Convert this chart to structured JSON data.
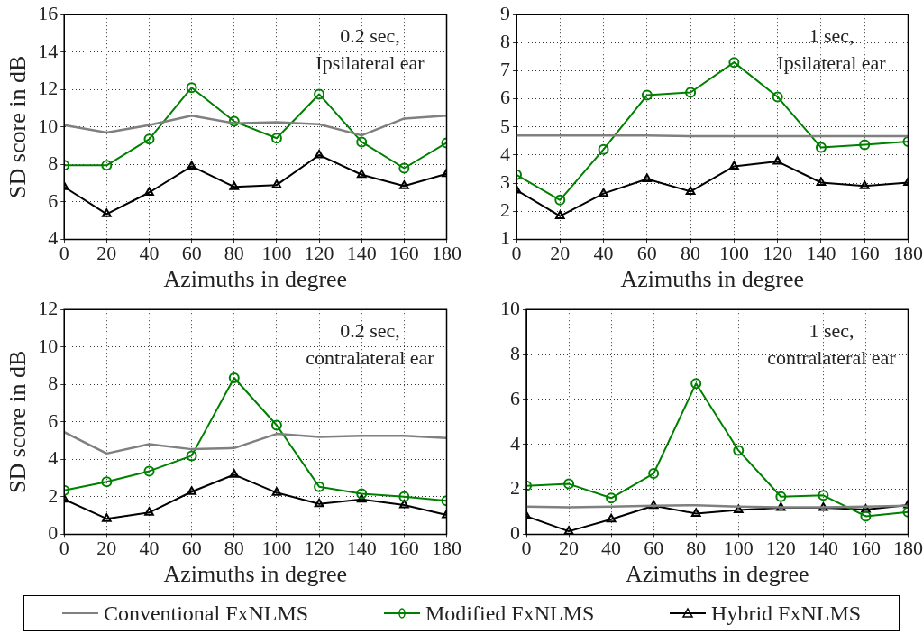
{
  "chart_data": [
    {
      "type": "line",
      "ylabel": "SD score in dB",
      "xlabel": "Azimuths in degree",
      "annotations": [
        "0.2 sec,",
        "Ipsilateral ear"
      ],
      "x": [
        0,
        20,
        40,
        60,
        80,
        100,
        120,
        140,
        160,
        180
      ],
      "xlim": [
        0,
        180
      ],
      "xticks": [
        0,
        20,
        40,
        60,
        80,
        100,
        120,
        140,
        160,
        180
      ],
      "ylim": [
        4,
        16
      ],
      "yticks": [
        4,
        6,
        8,
        10,
        12,
        14,
        16
      ],
      "grid": true,
      "legend": "bottom",
      "series": [
        {
          "name": "Conventional FxNLMS",
          "color": "#808080",
          "marker": "none",
          "values": [
            10.1,
            9.7,
            10.1,
            10.6,
            10.2,
            10.25,
            10.15,
            9.55,
            10.45,
            10.6
          ]
        },
        {
          "name": "Modified FxNLMS",
          "color": "#008000",
          "marker": "circle",
          "values": [
            7.95,
            7.95,
            9.35,
            12.1,
            10.3,
            9.4,
            11.75,
            9.2,
            7.8,
            9.15
          ]
        },
        {
          "name": "Hybrid FxNLMS",
          "color": "#000000",
          "marker": "triangle",
          "values": [
            6.8,
            5.35,
            6.5,
            7.9,
            6.8,
            6.9,
            8.5,
            7.45,
            6.85,
            7.5
          ]
        }
      ]
    },
    {
      "type": "line",
      "xlabel": "Azimuths in degree",
      "annotations": [
        "1 sec,",
        "Ipsilateral ear"
      ],
      "x": [
        0,
        20,
        40,
        60,
        80,
        100,
        120,
        140,
        160,
        180
      ],
      "xlim": [
        0,
        180
      ],
      "xticks": [
        0,
        20,
        40,
        60,
        80,
        100,
        120,
        140,
        160,
        180
      ],
      "ylim": [
        1,
        9
      ],
      "yticks": [
        1,
        2,
        3,
        4,
        5,
        6,
        7,
        8,
        9
      ],
      "grid": true,
      "series": [
        {
          "color": "#808080",
          "marker": "none",
          "values": [
            4.7,
            4.7,
            4.7,
            4.7,
            4.67,
            4.67,
            4.67,
            4.67,
            4.67,
            4.67
          ]
        },
        {
          "color": "#008000",
          "marker": "circle",
          "values": [
            3.3,
            2.4,
            4.2,
            6.13,
            6.23,
            7.3,
            6.07,
            4.27,
            4.37,
            4.48
          ]
        },
        {
          "color": "#000000",
          "marker": "triangle",
          "values": [
            2.75,
            1.83,
            2.63,
            3.15,
            2.7,
            3.6,
            3.77,
            3.02,
            2.9,
            3.02
          ]
        }
      ]
    },
    {
      "type": "line",
      "ylabel": "SD score in dB",
      "xlabel": "Azimuths in degree",
      "annotations": [
        "0.2 sec,",
        "contralateral ear"
      ],
      "x": [
        0,
        20,
        40,
        60,
        80,
        100,
        120,
        140,
        160,
        180
      ],
      "xlim": [
        0,
        180
      ],
      "xticks": [
        0,
        20,
        40,
        60,
        80,
        100,
        120,
        140,
        160,
        180
      ],
      "ylim": [
        0,
        12
      ],
      "yticks": [
        0,
        2,
        4,
        6,
        8,
        10,
        12
      ],
      "grid": true,
      "series": [
        {
          "color": "#808080",
          "marker": "none",
          "values": [
            5.45,
            4.31,
            4.81,
            4.54,
            4.6,
            5.36,
            5.2,
            5.26,
            5.26,
            5.14
          ]
        },
        {
          "color": "#008000",
          "marker": "circle",
          "values": [
            2.34,
            2.8,
            3.37,
            4.19,
            8.35,
            5.82,
            2.54,
            2.16,
            2.01,
            1.79
          ]
        },
        {
          "color": "#000000",
          "marker": "triangle",
          "values": [
            1.86,
            0.83,
            1.16,
            2.27,
            3.18,
            2.22,
            1.62,
            1.86,
            1.56,
            1.03
          ]
        }
      ]
    },
    {
      "type": "line",
      "xlabel": "Azimuths in degree",
      "annotations": [
        "1 sec,",
        "contralateral ear"
      ],
      "x": [
        0,
        20,
        40,
        60,
        80,
        100,
        120,
        140,
        160,
        180
      ],
      "xlim": [
        0,
        180
      ],
      "xticks": [
        0,
        20,
        40,
        60,
        80,
        100,
        120,
        140,
        160,
        180
      ],
      "ylim": [
        0,
        10
      ],
      "yticks": [
        0,
        2,
        4,
        6,
        8,
        10
      ],
      "grid": true,
      "series": [
        {
          "color": "#808080",
          "marker": "none",
          "values": [
            1.23,
            1.2,
            1.23,
            1.27,
            1.29,
            1.23,
            1.2,
            1.2,
            1.23,
            1.27
          ]
        },
        {
          "color": "#008000",
          "marker": "circle",
          "values": [
            2.15,
            2.24,
            1.61,
            2.7,
            6.71,
            3.73,
            1.67,
            1.73,
            0.8,
            0.99
          ]
        },
        {
          "color": "#000000",
          "marker": "triangle",
          "values": [
            0.8,
            0.13,
            0.67,
            1.27,
            0.92,
            1.08,
            1.18,
            1.18,
            1.1,
            1.3
          ]
        }
      ]
    }
  ]
}
